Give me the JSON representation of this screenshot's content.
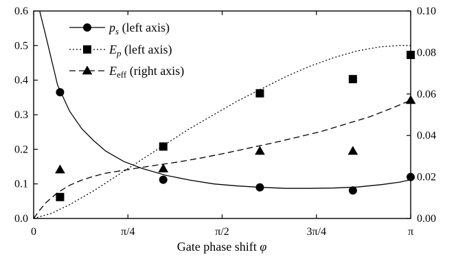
{
  "chart_data": {
    "type": "line",
    "x_axis": {
      "label": "Gate phase shift",
      "label_symbol": "φ",
      "range": [
        0,
        3.14159265
      ],
      "ticks": [
        0,
        0.78539816,
        1.57079633,
        2.35619449,
        3.14159265
      ],
      "tick_labels": [
        "0",
        "π/4",
        "π/2",
        "3π/4",
        "π"
      ]
    },
    "y_left": {
      "range": [
        0,
        0.6
      ],
      "ticks": [
        0,
        0.1,
        0.2,
        0.3,
        0.4,
        0.5,
        0.6
      ],
      "tick_labels": [
        "0.0",
        "0.1",
        "0.2",
        "0.3",
        "0.4",
        "0.5",
        "0.6"
      ]
    },
    "y_right": {
      "range": [
        0,
        0.1
      ],
      "ticks": [
        0,
        0.02,
        0.04,
        0.06,
        0.08,
        0.1
      ],
      "tick_labels": [
        "0.00",
        "0.02",
        "0.04",
        "0.06",
        "0.08",
        "0.10"
      ]
    },
    "legend_position": "top-left",
    "grid": false,
    "series": [
      {
        "symbol": "p",
        "subscript": "s",
        "axis_note": " (left axis)",
        "axis": "left",
        "marker": "circle",
        "line_style": "solid",
        "points": [
          {
            "x": 0.22,
            "y": 0.365
          },
          {
            "x": 1.08,
            "y": 0.112
          },
          {
            "x": 1.885,
            "y": 0.09
          },
          {
            "x": 2.66,
            "y": 0.081
          },
          {
            "x": 3.14159265,
            "y": 0.12
          }
        ],
        "curve": [
          {
            "x": 0.05,
            "y": 0.6
          },
          {
            "x": 0.1,
            "y": 0.53
          },
          {
            "x": 0.2,
            "y": 0.385
          },
          {
            "x": 0.3,
            "y": 0.31
          },
          {
            "x": 0.4,
            "y": 0.26
          },
          {
            "x": 0.5,
            "y": 0.225
          },
          {
            "x": 0.6,
            "y": 0.195
          },
          {
            "x": 0.75,
            "y": 0.165
          },
          {
            "x": 0.9,
            "y": 0.145
          },
          {
            "x": 1.1,
            "y": 0.125
          },
          {
            "x": 1.3,
            "y": 0.111
          },
          {
            "x": 1.5,
            "y": 0.1
          },
          {
            "x": 1.7,
            "y": 0.094
          },
          {
            "x": 1.9,
            "y": 0.09
          },
          {
            "x": 2.1,
            "y": 0.087
          },
          {
            "x": 2.3,
            "y": 0.087
          },
          {
            "x": 2.5,
            "y": 0.088
          },
          {
            "x": 2.7,
            "y": 0.091
          },
          {
            "x": 2.9,
            "y": 0.098
          },
          {
            "x": 3.05,
            "y": 0.105
          },
          {
            "x": 3.14159265,
            "y": 0.112
          }
        ]
      },
      {
        "symbol": "E",
        "subscript": "p",
        "axis_note": " (left axis)",
        "axis": "left",
        "marker": "square",
        "line_style": "dotted",
        "points": [
          {
            "x": 0.22,
            "y": 0.062
          },
          {
            "x": 1.08,
            "y": 0.208
          },
          {
            "x": 1.885,
            "y": 0.362
          },
          {
            "x": 2.66,
            "y": 0.403
          },
          {
            "x": 3.14159265,
            "y": 0.473
          }
        ],
        "curve": [
          {
            "x": 0,
            "y": 0
          },
          {
            "x": 0.15,
            "y": 0.015
          },
          {
            "x": 0.3,
            "y": 0.04
          },
          {
            "x": 0.5,
            "y": 0.08
          },
          {
            "x": 0.7,
            "y": 0.125
          },
          {
            "x": 0.9,
            "y": 0.17
          },
          {
            "x": 1.1,
            "y": 0.215
          },
          {
            "x": 1.3,
            "y": 0.26
          },
          {
            "x": 1.5,
            "y": 0.3
          },
          {
            "x": 1.7,
            "y": 0.34
          },
          {
            "x": 1.9,
            "y": 0.375
          },
          {
            "x": 2.1,
            "y": 0.41
          },
          {
            "x": 2.3,
            "y": 0.44
          },
          {
            "x": 2.5,
            "y": 0.465
          },
          {
            "x": 2.7,
            "y": 0.485
          },
          {
            "x": 2.9,
            "y": 0.497
          },
          {
            "x": 3.05,
            "y": 0.5
          },
          {
            "x": 3.14159265,
            "y": 0.5
          }
        ]
      },
      {
        "symbol": "E",
        "subscript": "eff",
        "axis_note": " (right axis)",
        "axis": "right",
        "marker": "triangle",
        "line_style": "dashed",
        "points": [
          {
            "x": 0.22,
            "y": 0.0235
          },
          {
            "x": 1.08,
            "y": 0.024
          },
          {
            "x": 1.885,
            "y": 0.0325
          },
          {
            "x": 2.66,
            "y": 0.0325
          },
          {
            "x": 3.14159265,
            "y": 0.057
          }
        ],
        "curve": [
          {
            "x": 0,
            "y": 0
          },
          {
            "x": 0.05,
            "y": 0.004
          },
          {
            "x": 0.1,
            "y": 0.0075
          },
          {
            "x": 0.2,
            "y": 0.0125
          },
          {
            "x": 0.3,
            "y": 0.016
          },
          {
            "x": 0.4,
            "y": 0.0185
          },
          {
            "x": 0.5,
            "y": 0.0203
          },
          {
            "x": 0.6,
            "y": 0.0218
          },
          {
            "x": 0.8,
            "y": 0.0237
          },
          {
            "x": 1.0,
            "y": 0.0255
          },
          {
            "x": 1.2,
            "y": 0.0272
          },
          {
            "x": 1.4,
            "y": 0.0292
          },
          {
            "x": 1.6,
            "y": 0.0315
          },
          {
            "x": 1.8,
            "y": 0.034
          },
          {
            "x": 2.0,
            "y": 0.0365
          },
          {
            "x": 2.2,
            "y": 0.0392
          },
          {
            "x": 2.4,
            "y": 0.042
          },
          {
            "x": 2.6,
            "y": 0.0455
          },
          {
            "x": 2.8,
            "y": 0.049
          },
          {
            "x": 3.0,
            "y": 0.0535
          },
          {
            "x": 3.14159265,
            "y": 0.057
          }
        ]
      }
    ]
  }
}
